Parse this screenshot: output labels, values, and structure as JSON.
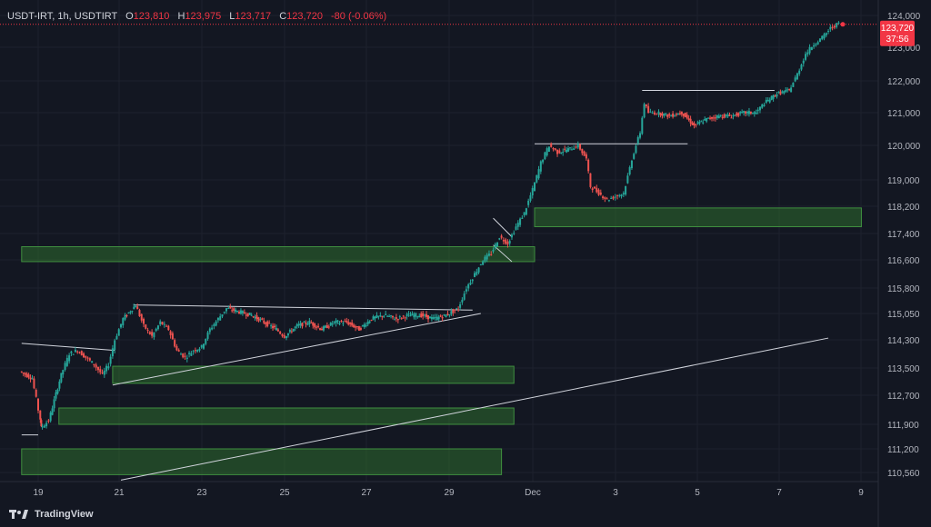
{
  "header": {
    "symbol": "USDT-IRT, 1h, USDTIRT",
    "o_label": "O",
    "o_value": "123,810",
    "h_label": "H",
    "h_value": "123,975",
    "l_label": "L",
    "l_value": "123,717",
    "c_label": "C",
    "c_value": "123,720",
    "change": "-80 (-0.06%)"
  },
  "price_badge": {
    "price": "123,720",
    "countdown": "37:56"
  },
  "brand": {
    "name": "TradingView"
  },
  "colors": {
    "background": "#131722",
    "up": "#26a69a",
    "down": "#ef5350",
    "zone": "#2e6b2e",
    "line": "#d1d4dc",
    "price_badge": "#f23645"
  },
  "chart_data": {
    "type": "candlestick",
    "x_ticks": [
      "19",
      "21",
      "23",
      "25",
      "27",
      "29",
      "Dec",
      "3",
      "5",
      "7",
      "9"
    ],
    "y_ticks": [
      124000,
      123000,
      122000,
      121000,
      120000,
      119000,
      118200,
      117400,
      116600,
      115800,
      115050,
      114300,
      113500,
      112700,
      111900,
      111200,
      110560
    ],
    "y_tick_labels": [
      "124,000",
      "123,000",
      "122,000",
      "121,000",
      "120,000",
      "119,000",
      "118,200",
      "117,400",
      "116,600",
      "115,800",
      "115,050",
      "114,300",
      "113,500",
      "112,700",
      "111,900",
      "111,200",
      "110,560"
    ],
    "x_range_days": [
      18.6,
      28.8
    ],
    "price_path": [
      [
        18.6,
        113.4
      ],
      [
        18.9,
        113.2
      ],
      [
        19.05,
        112.3
      ],
      [
        19.1,
        111.8
      ],
      [
        19.3,
        112.0
      ],
      [
        19.6,
        113.3
      ],
      [
        19.8,
        113.9
      ],
      [
        20.0,
        114.0
      ],
      [
        20.2,
        113.8
      ],
      [
        20.4,
        113.6
      ],
      [
        20.6,
        113.3
      ],
      [
        20.75,
        113.6
      ],
      [
        20.9,
        114.3
      ],
      [
        21.1,
        114.9
      ],
      [
        21.4,
        115.3
      ],
      [
        21.6,
        114.7
      ],
      [
        21.8,
        114.4
      ],
      [
        22.0,
        114.8
      ],
      [
        22.2,
        114.6
      ],
      [
        22.4,
        114.0
      ],
      [
        22.6,
        113.8
      ],
      [
        22.8,
        114.0
      ],
      [
        23.0,
        114.1
      ],
      [
        23.2,
        114.6
      ],
      [
        23.4,
        114.9
      ],
      [
        23.6,
        115.2
      ],
      [
        23.9,
        115.1
      ],
      [
        24.2,
        115.0
      ],
      [
        24.5,
        114.8
      ],
      [
        24.8,
        114.6
      ],
      [
        25.0,
        114.4
      ],
      [
        25.3,
        114.7
      ],
      [
        25.6,
        114.8
      ],
      [
        25.9,
        114.6
      ],
      [
        26.2,
        114.8
      ],
      [
        26.5,
        114.8
      ],
      [
        26.8,
        114.6
      ],
      [
        27.1,
        114.9
      ],
      [
        27.4,
        115.0
      ],
      [
        27.7,
        114.9
      ],
      [
        28.0,
        115.0
      ],
      [
        28.3,
        115.0
      ],
      [
        28.6,
        114.9
      ],
      [
        28.9,
        115.0
      ],
      [
        29.2,
        115.2
      ],
      [
        29.4,
        115.8
      ],
      [
        29.6,
        116.2
      ],
      [
        29.8,
        116.6
      ],
      [
        30.0,
        116.8
      ],
      [
        30.2,
        117.3
      ],
      [
        30.4,
        117.1
      ],
      [
        30.6,
        117.6
      ],
      [
        30.8,
        118.0
      ],
      [
        31.0,
        118.7
      ],
      [
        31.2,
        119.5
      ],
      [
        31.4,
        120.0
      ],
      [
        31.6,
        119.8
      ],
      [
        31.9,
        119.9
      ],
      [
        32.1,
        120.0
      ],
      [
        32.3,
        119.6
      ],
      [
        32.4,
        118.8
      ],
      [
        32.6,
        118.6
      ],
      [
        32.8,
        118.4
      ],
      [
        33.0,
        118.5
      ],
      [
        33.2,
        118.6
      ],
      [
        33.4,
        119.6
      ],
      [
        33.6,
        120.4
      ],
      [
        33.7,
        121.3
      ],
      [
        33.8,
        121.0
      ],
      [
        34.0,
        121.0
      ],
      [
        34.3,
        120.9
      ],
      [
        34.6,
        121.0
      ],
      [
        34.9,
        120.6
      ],
      [
        35.2,
        120.8
      ],
      [
        35.5,
        120.9
      ],
      [
        35.8,
        120.9
      ],
      [
        36.1,
        121.0
      ],
      [
        36.4,
        121.0
      ],
      [
        36.6,
        121.3
      ],
      [
        36.9,
        121.6
      ],
      [
        37.2,
        121.7
      ],
      [
        37.4,
        122.2
      ],
      [
        37.6,
        122.8
      ],
      [
        37.8,
        123.1
      ],
      [
        38.0,
        123.3
      ],
      [
        38.2,
        123.6
      ],
      [
        38.4,
        123.75
      ]
    ],
    "horizontal_lines": [
      {
        "y": 121700,
        "x_from": 33.6,
        "x_to": 36.8
      },
      {
        "y": 120050,
        "x_from": 31.0,
        "x_to": 34.7
      }
    ],
    "trend_lines": [
      {
        "from": [
          18.6,
          114.2
        ],
        "to": [
          20.85,
          114.0
        ]
      },
      {
        "from": [
          21.3,
          115.3
        ],
        "to": [
          29.5,
          115.15
        ]
      },
      {
        "from": [
          20.8,
          113.0
        ],
        "to": [
          29.7,
          115.05
        ]
      },
      {
        "from": [
          18.6,
          111.6
        ],
        "to": [
          19.0,
          111.6
        ]
      },
      {
        "from": [
          21.0,
          110.35
        ],
        "to": [
          38.1,
          114.35
        ]
      }
    ],
    "zones": [
      {
        "y_top": 118.15,
        "y_bottom": 117.6,
        "x_from": 31.0,
        "x_to": 38.9
      },
      {
        "y_top": 117.0,
        "y_bottom": 116.55,
        "x_from": 18.6,
        "x_to": 31.0
      },
      {
        "y_top": 113.55,
        "y_bottom": 113.05,
        "x_from": 20.8,
        "x_to": 30.5
      },
      {
        "y_top": 112.35,
        "y_bottom": 111.9,
        "x_from": 19.5,
        "x_to": 30.5
      },
      {
        "y_top": 111.2,
        "y_bottom": 110.5,
        "x_from": 18.6,
        "x_to": 30.2
      }
    ],
    "last_price": 123720
  }
}
